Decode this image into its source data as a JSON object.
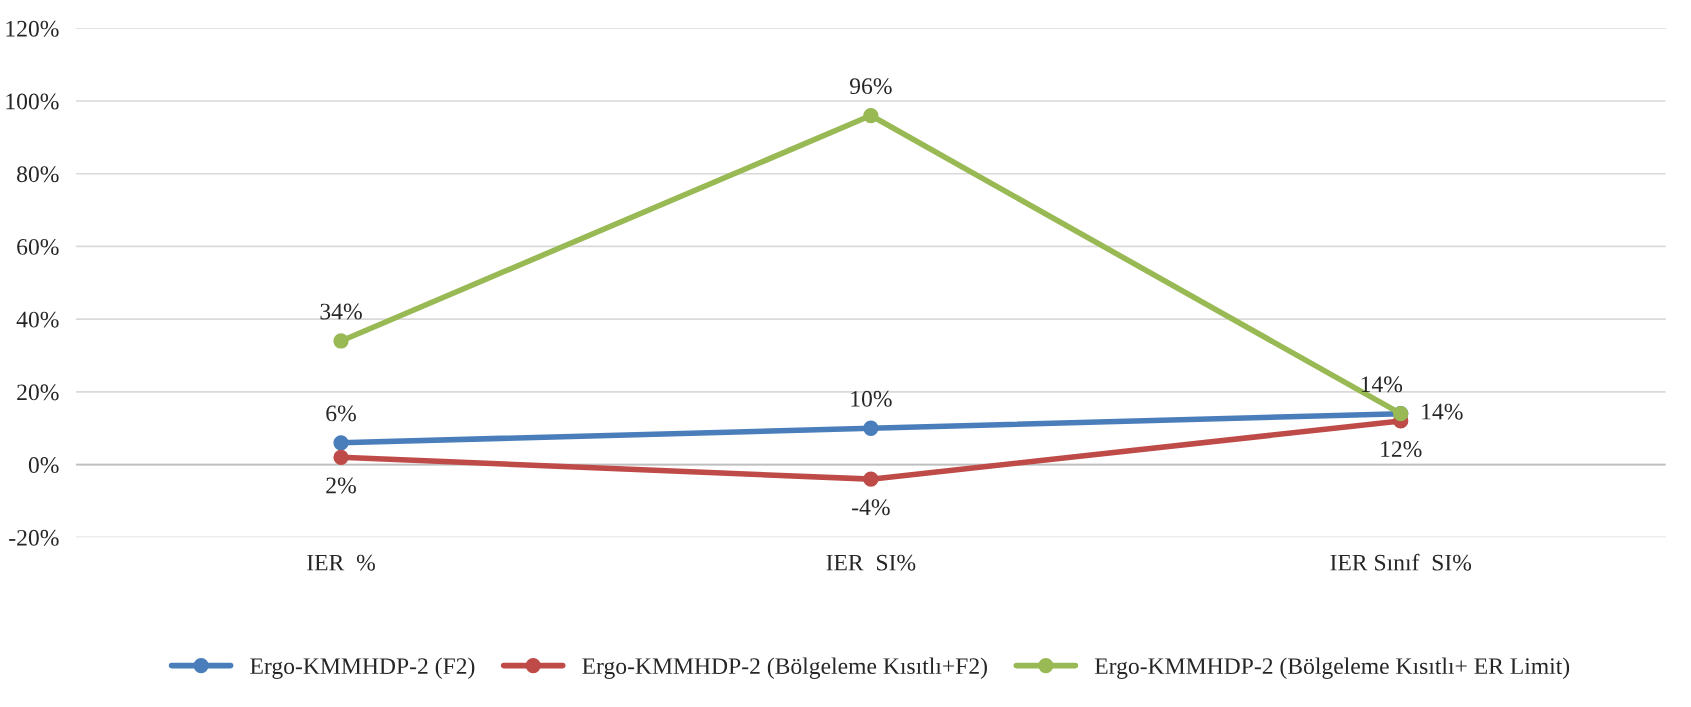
{
  "chart_data": {
    "type": "line",
    "categories": [
      "IER  %",
      "IER  SI%",
      "IER Sınıf  SI%"
    ],
    "series": [
      {
        "name": "Ergo-KMMHDP-2 (F2)",
        "color": "#4a7ebb",
        "values": [
          6,
          10,
          14
        ],
        "value_labels": [
          "6%",
          "10%",
          "14%"
        ]
      },
      {
        "name": "Ergo-KMMHDP-2 (Bölgeleme Kısıtlı+F2)",
        "color": "#be4b48",
        "values": [
          2,
          -4,
          12
        ],
        "value_labels": [
          "2%",
          "-4%",
          "12%"
        ]
      },
      {
        "name": "Ergo-KMMHDP-2 (Bölgeleme Kısıtlı+ ER Limit)",
        "color": "#98b954",
        "values": [
          34,
          96,
          14
        ],
        "value_labels": [
          "34%",
          "96%",
          "14%"
        ]
      }
    ],
    "ylim": [
      -20,
      120
    ],
    "yticks": [
      {
        "value": -20,
        "label": "-20%"
      },
      {
        "value": 0,
        "label": "0%"
      },
      {
        "value": 20,
        "label": "20%"
      },
      {
        "value": 40,
        "label": "40%"
      },
      {
        "value": 60,
        "label": "60%"
      },
      {
        "value": 80,
        "label": "80%"
      },
      {
        "value": 100,
        "label": "100%"
      },
      {
        "value": 120,
        "label": "120%"
      }
    ],
    "grid": "y",
    "legend": "bottom",
    "marker": "circle",
    "line_style": "solid"
  }
}
